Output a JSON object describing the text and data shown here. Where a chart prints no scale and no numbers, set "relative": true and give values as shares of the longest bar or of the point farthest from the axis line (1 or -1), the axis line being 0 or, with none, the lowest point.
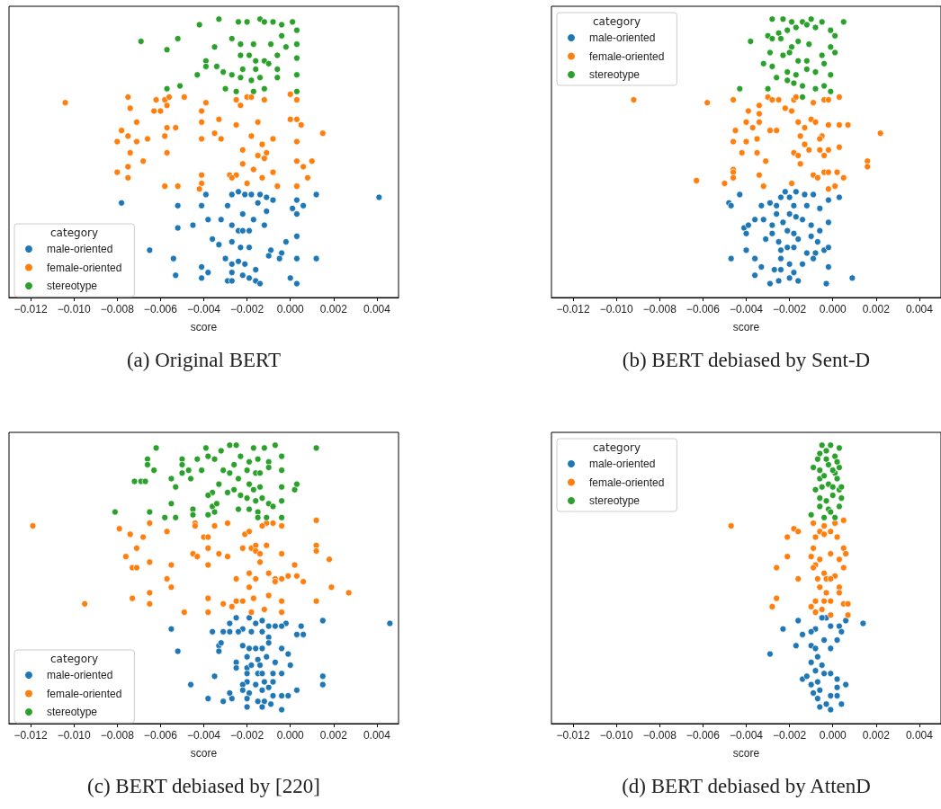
{
  "chart_data": [
    {
      "type": "scatter",
      "relative": true,
      "xlabel": "score",
      "legend_title": "category",
      "legend": "bottom left",
      "marker": "circle",
      "xlim": [
        -0.013,
        0.005
      ],
      "xticks": [
        {
          "value": -0.012,
          "label": "−0.012"
        },
        {
          "value": -0.01,
          "label": "−0.010"
        },
        {
          "value": -0.008,
          "label": "−0.008"
        },
        {
          "value": -0.006,
          "label": "−0.006"
        },
        {
          "value": -0.004,
          "label": "−0.004"
        },
        {
          "value": -0.002,
          "label": "−0.002"
        },
        {
          "value": 0,
          "label": "0.000"
        },
        {
          "value": 0.002,
          "label": "0.002"
        },
        {
          "value": 0.004,
          "label": "0.004"
        }
      ],
      "annotations": [
        "(a) Original BERT"
      ],
      "series": [
        {
          "name": "male-oriented",
          "color": "#1f77b4",
          "x": [
            -0.0078,
            -0.0052,
            -0.0052,
            -0.0045,
            -0.0065,
            -0.0054,
            -0.0053,
            -0.0041,
            -0.0041,
            -0.0038,
            -0.0039,
            -0.0041,
            -0.0038,
            -0.0036,
            -0.0032,
            -0.0033,
            -0.003,
            -0.0029,
            -0.0027,
            -0.0029,
            -0.0024,
            -0.0021,
            -0.0018,
            -0.0014,
            -0.0011,
            -0.0008,
            -0.0015,
            -0.0011,
            -0.0022,
            -0.0017,
            -0.0012,
            -0.0027,
            -0.0024,
            -0.0022,
            -0.0019,
            -0.0027,
            -0.0023,
            -0.0019,
            -0.0009,
            -0.0002,
            -0.0004,
            -0.0005,
            -0.001,
            -0.0027,
            -0.0024,
            -0.0021,
            -0.0016,
            -0.0027,
            -0.0022,
            -0.0019,
            -0.0016,
            -0.0014,
            -0.0027,
            0.0,
            0.0001,
            0.0006,
            0.0012,
            0.0012,
            0.0041,
            0.0003,
            0.0003,
            0.0003,
            0.0003,
            0.0003
          ],
          "values": [
            0.34,
            0.33,
            0.25,
            0.26,
            0.17,
            0.14,
            0.08,
            0.11,
            0.07,
            0.09,
            0.37,
            0.33,
            0.28,
            0.21,
            0.28,
            0.19,
            0.14,
            0.06,
            0.37,
            0.33,
            0.38,
            0.37,
            0.37,
            0.37,
            0.36,
            0.35,
            0.34,
            0.31,
            0.3,
            0.28,
            0.26,
            0.26,
            0.24,
            0.24,
            0.24,
            0.2,
            0.18,
            0.18,
            0.17,
            0.2,
            0.16,
            0.14,
            0.15,
            0.12,
            0.13,
            0.12,
            0.1,
            0.09,
            0.08,
            0.07,
            0.06,
            0.05,
            0.06,
            0.07,
            0.32,
            0.33,
            0.37,
            0.14,
            0.36,
            0.35,
            0.3,
            0.22,
            0.14,
            0.05
          ]
        },
        {
          "name": "female-oriented",
          "color": "#ff7f0e",
          "x": [
            -0.0104,
            -0.0075,
            -0.0074,
            -0.0062,
            -0.0058,
            -0.0056,
            -0.0049,
            -0.0057,
            -0.0063,
            -0.006,
            -0.0071,
            -0.0078,
            -0.008,
            -0.0075,
            -0.0071,
            -0.0066,
            -0.0074,
            -0.0068,
            -0.008,
            -0.0075,
            -0.0075,
            -0.0058,
            -0.0057,
            -0.0053,
            -0.0057,
            -0.0058,
            -0.0052,
            -0.0041,
            -0.0039,
            -0.0041,
            -0.0041,
            -0.0035,
            -0.0033,
            -0.0032,
            -0.0025,
            -0.0023,
            -0.002,
            -0.0018,
            -0.0012,
            -0.0025,
            -0.0015,
            -0.0018,
            -0.0013,
            -0.0022,
            -0.0015,
            -0.0012,
            -0.0011,
            -0.0008,
            -0.0022,
            -0.0017,
            -0.0041,
            -0.0041,
            -0.0042,
            -0.0028,
            -0.0025,
            -0.0027,
            -0.002,
            -0.0013,
            -0.0008,
            -0.0006,
            0.0,
            0.0,
            0.0005,
            0.0015,
            0.0006,
            0.001,
            0.0008,
            0.0003,
            0.0003,
            0.0003,
            0.0003,
            0.0003
          ],
          "values": [
            0.7,
            0.72,
            0.68,
            0.71,
            0.71,
            0.72,
            0.72,
            0.69,
            0.67,
            0.67,
            0.63,
            0.6,
            0.56,
            0.58,
            0.56,
            0.57,
            0.52,
            0.49,
            0.45,
            0.47,
            0.43,
            0.58,
            0.61,
            0.61,
            0.52,
            0.4,
            0.4,
            0.67,
            0.7,
            0.63,
            0.57,
            0.59,
            0.64,
            0.57,
            0.71,
            0.69,
            0.72,
            0.72,
            0.71,
            0.62,
            0.63,
            0.58,
            0.55,
            0.53,
            0.51,
            0.5,
            0.52,
            0.57,
            0.48,
            0.46,
            0.44,
            0.41,
            0.39,
            0.44,
            0.44,
            0.43,
            0.41,
            0.43,
            0.45,
            0.4,
            0.73,
            0.64,
            0.62,
            0.59,
            0.47,
            0.49,
            0.43,
            0.71,
            0.64,
            0.56,
            0.49,
            0.4
          ]
        },
        {
          "name": "stereotype",
          "color": "#2ca02c",
          "x": [
            -0.0033,
            -0.0042,
            -0.0069,
            -0.0052,
            -0.0057,
            -0.0024,
            -0.002,
            -0.0014,
            -0.0012,
            -0.0008,
            -0.0004,
            0.0001,
            0.0003,
            0.0003,
            0.0003,
            0.0003,
            0.0003,
            -0.0035,
            -0.0027,
            -0.0023,
            -0.0017,
            -0.0009,
            -0.0002,
            -0.0004,
            -0.0039,
            -0.0039,
            -0.0043,
            -0.0034,
            -0.0031,
            -0.0027,
            -0.0023,
            -0.0019,
            -0.0016,
            -0.0012,
            -0.001,
            -0.0006,
            -0.0006,
            -0.0006,
            -0.0023,
            -0.0018,
            -0.0014,
            -0.003,
            -0.0025,
            -0.0017,
            -0.0012,
            -0.0057,
            -0.0051,
            -0.0022,
            -0.0016
          ],
          "values": [
            1.0,
            0.98,
            0.92,
            0.93,
            0.89,
            0.99,
            0.99,
            1.0,
            0.99,
            0.99,
            0.98,
            0.99,
            0.96,
            0.91,
            0.86,
            0.8,
            0.74,
            0.9,
            0.93,
            0.91,
            0.91,
            0.91,
            0.9,
            0.94,
            0.85,
            0.83,
            0.8,
            0.83,
            0.81,
            0.8,
            0.87,
            0.87,
            0.85,
            0.85,
            0.84,
            0.87,
            0.82,
            0.79,
            0.79,
            0.78,
            0.79,
            0.75,
            0.74,
            0.74,
            0.75,
            0.75,
            0.76,
            0.82,
            0.82
          ]
        }
      ]
    },
    {
      "type": "scatter",
      "relative": true,
      "xlabel": "score",
      "legend_title": "category",
      "legend": "top left",
      "marker": "circle",
      "xlim": [
        -0.013,
        0.005
      ],
      "xticks": [
        {
          "value": -0.012,
          "label": "−0.012"
        },
        {
          "value": -0.01,
          "label": "−0.010"
        },
        {
          "value": -0.008,
          "label": "−0.008"
        },
        {
          "value": -0.006,
          "label": "−0.006"
        },
        {
          "value": -0.004,
          "label": "−0.004"
        },
        {
          "value": -0.002,
          "label": "−0.002"
        },
        {
          "value": 0,
          "label": "0.000"
        },
        {
          "value": 0.002,
          "label": "0.002"
        },
        {
          "value": 0.004,
          "label": "0.004"
        }
      ],
      "annotations": [
        "(b) BERT debiased by Sent-D"
      ],
      "series": [
        {
          "name": "male-oriented",
          "color": "#1f77b4",
          "x": [
            -0.0043,
            -0.0048,
            -0.0047,
            -0.0033,
            -0.0032,
            -0.0036,
            -0.0041,
            -0.0039,
            -0.004,
            -0.004,
            -0.0047,
            -0.0036,
            -0.0033,
            -0.0036,
            -0.0029,
            -0.0029,
            -0.0026,
            -0.0022,
            -0.0024,
            -0.002,
            -0.0017,
            -0.0013,
            -0.0012,
            -0.0009,
            -0.0006,
            -0.0018,
            -0.002,
            -0.0017,
            -0.0014,
            -0.0026,
            -0.0028,
            -0.0023,
            -0.0021,
            -0.0018,
            -0.0031,
            -0.0028,
            -0.0025,
            -0.0024,
            -0.0021,
            -0.0018,
            -0.0016,
            -0.001,
            -0.0006,
            -0.001,
            -0.0007,
            -0.0012,
            -0.0008,
            -0.0004,
            -0.0009,
            -0.0024,
            -0.002,
            -0.0014,
            -0.0027,
            -0.0024,
            -0.0018,
            -0.0025,
            -0.002,
            -0.0016,
            -0.0003,
            0.0003,
            0.0009,
            -0.0002,
            -0.0002,
            -0.0002,
            -0.0002
          ],
          "values": [
            0.37,
            0.34,
            0.33,
            0.33,
            0.28,
            0.28,
            0.25,
            0.26,
            0.23,
            0.17,
            0.14,
            0.14,
            0.11,
            0.08,
            0.05,
            0.34,
            0.33,
            0.38,
            0.36,
            0.36,
            0.38,
            0.37,
            0.33,
            0.37,
            0.32,
            0.33,
            0.3,
            0.29,
            0.28,
            0.3,
            0.26,
            0.27,
            0.24,
            0.23,
            0.21,
            0.23,
            0.2,
            0.17,
            0.18,
            0.18,
            0.21,
            0.26,
            0.24,
            0.22,
            0.2,
            0.16,
            0.16,
            0.17,
            0.14,
            0.14,
            0.12,
            0.12,
            0.1,
            0.1,
            0.09,
            0.06,
            0.07,
            0.06,
            0.05,
            0.36,
            0.07,
            0.35,
            0.27,
            0.18,
            0.11
          ]
        },
        {
          "name": "female-oriented",
          "color": "#ff7f0e",
          "x": [
            -0.0092,
            -0.0058,
            -0.0046,
            -0.003,
            -0.0028,
            -0.0025,
            -0.0018,
            -0.0017,
            -0.0009,
            -0.0004,
            0.0003,
            -0.0034,
            -0.0039,
            -0.0034,
            -0.0022,
            -0.0019,
            -0.004,
            -0.0034,
            -0.0037,
            -0.0045,
            -0.0046,
            -0.004,
            -0.0035,
            -0.0029,
            -0.0026,
            -0.0016,
            -0.0013,
            -0.001,
            -0.0008,
            -0.0015,
            -0.0013,
            -0.0005,
            -0.0006,
            -0.0011,
            -0.0006,
            0.0003,
            0.0007,
            0.0022,
            0.0003,
            -0.0042,
            -0.0035,
            -0.0031,
            -0.0018,
            -0.0016,
            -0.0015,
            -0.0004,
            -0.0046,
            -0.0046,
            -0.0046,
            -0.0063,
            -0.005,
            -0.0034,
            -0.0032,
            -0.0019,
            -0.0009,
            -0.0007,
            -0.0004,
            0.0002,
            0.0005,
            0.0001,
            0.0016,
            0.0016,
            -0.0002,
            -0.0002,
            -0.0002,
            -0.0002,
            -0.0002
          ],
          "values": [
            0.71,
            0.7,
            0.71,
            0.72,
            0.71,
            0.71,
            0.71,
            0.72,
            0.7,
            0.71,
            0.72,
            0.69,
            0.67,
            0.66,
            0.68,
            0.67,
            0.63,
            0.63,
            0.61,
            0.6,
            0.56,
            0.56,
            0.57,
            0.6,
            0.6,
            0.63,
            0.61,
            0.64,
            0.63,
            0.58,
            0.55,
            0.58,
            0.57,
            0.53,
            0.53,
            0.62,
            0.62,
            0.59,
            0.54,
            0.52,
            0.52,
            0.49,
            0.52,
            0.51,
            0.48,
            0.51,
            0.46,
            0.45,
            0.43,
            0.42,
            0.41,
            0.44,
            0.4,
            0.41,
            0.44,
            0.43,
            0.45,
            0.45,
            0.43,
            0.4,
            0.49,
            0.47,
            0.71,
            0.62,
            0.53,
            0.45,
            0.39
          ]
        },
        {
          "name": "stereotype",
          "color": "#2ca02c",
          "x": [
            -0.0028,
            -0.0023,
            -0.0019,
            -0.0014,
            -0.001,
            -0.0005,
            0.0005,
            -0.0038,
            -0.003,
            -0.0025,
            -0.0021,
            -0.0017,
            -0.0012,
            -0.0008,
            -0.0001,
            0.0001,
            -0.0028,
            -0.0024,
            -0.0019,
            -0.0016,
            -0.0011,
            -0.0001,
            0.0001,
            -0.0029,
            -0.0023,
            -0.002,
            -0.0016,
            -0.0012,
            -0.0005,
            -0.0032,
            -0.0028,
            -0.0021,
            -0.0017,
            -0.0012,
            -0.0008,
            -0.0004,
            -0.0026,
            -0.0021,
            -0.0018,
            -0.0014,
            -0.0008,
            -0.003,
            -0.0043,
            -0.0004,
            -0.0001,
            -0.0001,
            -0.0014
          ],
          "values": [
            1.0,
            1.0,
            0.99,
            0.99,
            1.0,
            0.99,
            0.99,
            0.92,
            0.94,
            0.95,
            0.96,
            0.97,
            0.98,
            0.97,
            0.96,
            0.94,
            0.93,
            0.93,
            0.9,
            0.92,
            0.91,
            0.9,
            0.88,
            0.88,
            0.87,
            0.88,
            0.85,
            0.85,
            0.87,
            0.84,
            0.83,
            0.81,
            0.8,
            0.82,
            0.81,
            0.84,
            0.79,
            0.78,
            0.77,
            0.76,
            0.75,
            0.75,
            0.75,
            0.76,
            0.8,
            0.74,
            0.72
          ]
        }
      ]
    },
    {
      "type": "scatter",
      "relative": true,
      "xlabel": "score",
      "legend_title": "category",
      "legend": "bottom left",
      "marker": "circle",
      "xlim": [
        -0.013,
        0.005
      ],
      "xticks": [
        {
          "value": -0.012,
          "label": "−0.012"
        },
        {
          "value": -0.01,
          "label": "−0.010"
        },
        {
          "value": -0.008,
          "label": "−0.008"
        },
        {
          "value": -0.006,
          "label": "−0.006"
        },
        {
          "value": -0.004,
          "label": "−0.004"
        },
        {
          "value": -0.002,
          "label": "−0.002"
        },
        {
          "value": 0,
          "label": "0.000"
        },
        {
          "value": 0.002,
          "label": "0.002"
        },
        {
          "value": 0.004,
          "label": "0.004"
        }
      ],
      "annotations": [
        "(c) BERT debiased by [220]"
      ],
      "series": [
        {
          "name": "male-oriented",
          "color": "#1f77b4",
          "x": [
            -0.0055,
            -0.0052,
            -0.0035,
            -0.0046,
            -0.0038,
            -0.0031,
            -0.0027,
            -0.0028,
            -0.0036,
            -0.0031,
            -0.0028,
            -0.0028,
            -0.0025,
            -0.0022,
            -0.0024,
            -0.0033,
            -0.0032,
            -0.0033,
            -0.0019,
            -0.0016,
            -0.0013,
            -0.001,
            -0.0007,
            -0.0018,
            -0.0013,
            -0.001,
            -0.001,
            -0.0022,
            -0.0019,
            -0.0016,
            -0.0013,
            -0.002,
            -0.0015,
            -0.0011,
            -0.0025,
            -0.0025,
            -0.002,
            -0.0018,
            -0.0014,
            -0.002,
            -0.0015,
            -0.0013,
            -0.0008,
            -0.0007,
            -0.002,
            -0.0016,
            -0.0012,
            -0.0008,
            -0.0022,
            -0.0022,
            -0.0019,
            -0.0013,
            -0.001,
            -0.002,
            -0.0015,
            -0.0012,
            -0.002,
            -0.0013,
            -0.0008,
            -0.0009,
            -0.0001,
            -0.0001,
            0.0,
            -0.0002,
            0.0003,
            0.0005,
            0.0006,
            0.0003,
            0.0015,
            0.0015,
            0.0015,
            0.0046,
            -0.0004,
            -0.0004,
            -0.0004,
            -0.0004,
            -0.0004
          ],
          "values": [
            0.34,
            0.26,
            0.17,
            0.14,
            0.09,
            0.08,
            0.09,
            0.11,
            0.33,
            0.33,
            0.33,
            0.36,
            0.38,
            0.34,
            0.33,
            0.28,
            0.29,
            0.26,
            0.38,
            0.36,
            0.37,
            0.35,
            0.35,
            0.33,
            0.33,
            0.31,
            0.29,
            0.28,
            0.27,
            0.27,
            0.27,
            0.24,
            0.23,
            0.24,
            0.22,
            0.2,
            0.2,
            0.21,
            0.21,
            0.18,
            0.18,
            0.18,
            0.18,
            0.22,
            0.15,
            0.14,
            0.15,
            0.15,
            0.14,
            0.12,
            0.11,
            0.12,
            0.13,
            0.09,
            0.08,
            0.08,
            0.06,
            0.06,
            0.1,
            0.07,
            0.1,
            0.25,
            0.21,
            0.36,
            0.32,
            0.35,
            0.32,
            0.12,
            0.37,
            0.17,
            0.14,
            0.36,
            0.35,
            0.27,
            0.18,
            0.1,
            0.05
          ]
        },
        {
          "name": "female-oriented",
          "color": "#ff7f0e",
          "x": [
            -0.0119,
            -0.0095,
            -0.0079,
            -0.0074,
            -0.0068,
            -0.0071,
            -0.0076,
            -0.0073,
            -0.0071,
            -0.0065,
            -0.0057,
            -0.0065,
            -0.0055,
            -0.0057,
            -0.0055,
            -0.0065,
            -0.0073,
            -0.0065,
            -0.0049,
            -0.0044,
            -0.0044,
            -0.0035,
            -0.0029,
            -0.004,
            -0.0038,
            -0.0038,
            -0.0045,
            -0.0043,
            -0.0033,
            -0.0029,
            -0.0038,
            -0.0021,
            -0.0019,
            -0.0022,
            -0.0018,
            -0.0016,
            -0.0011,
            -0.0016,
            -0.0014,
            -0.0014,
            -0.001,
            -0.0007,
            -0.0007,
            -0.0019,
            -0.0025,
            -0.0016,
            -0.0019,
            -0.001,
            -0.0038,
            -0.0031,
            -0.0027,
            -0.0038,
            -0.0025,
            -0.0022,
            -0.0017,
            -0.0018,
            -0.0012,
            -0.0011,
            -0.0008,
            -0.0013,
            0.0002,
            -0.0001,
            0.0003,
            0.0006,
            0.0012,
            0.0012,
            0.0012,
            0.0018,
            0.0019,
            0.0027,
            0.0012,
            -0.0004,
            -0.0004,
            -0.0004,
            -0.0004,
            -0.0004
          ],
          "values": [
            0.71,
            0.43,
            0.7,
            0.68,
            0.67,
            0.63,
            0.6,
            0.56,
            0.56,
            0.72,
            0.69,
            0.58,
            0.57,
            0.52,
            0.49,
            0.47,
            0.45,
            0.43,
            0.4,
            0.72,
            0.71,
            0.71,
            0.72,
            0.67,
            0.67,
            0.63,
            0.61,
            0.6,
            0.61,
            0.6,
            0.57,
            0.68,
            0.69,
            0.63,
            0.63,
            0.64,
            0.64,
            0.62,
            0.61,
            0.58,
            0.54,
            0.52,
            0.51,
            0.54,
            0.52,
            0.52,
            0.49,
            0.46,
            0.45,
            0.43,
            0.42,
            0.4,
            0.44,
            0.44,
            0.45,
            0.4,
            0.41,
            0.72,
            0.72,
            0.71,
            0.57,
            0.53,
            0.53,
            0.51,
            0.73,
            0.64,
            0.62,
            0.59,
            0.49,
            0.47,
            0.44,
            0.71,
            0.61,
            0.52,
            0.44,
            0.4
          ]
        },
        {
          "name": "stereotype",
          "color": "#2ca02c",
          "x": [
            0.0012,
            -0.0062,
            -0.0039,
            -0.0028,
            -0.0025,
            -0.0017,
            -0.0012,
            -0.0007,
            -0.0066,
            -0.0066,
            -0.0063,
            -0.005,
            -0.005,
            -0.0047,
            -0.005,
            -0.0043,
            -0.0038,
            -0.0032,
            -0.0035,
            -0.0031,
            -0.0026,
            -0.0023,
            -0.0019,
            -0.0015,
            -0.001,
            -0.001,
            -0.0041,
            -0.0028,
            -0.002,
            -0.0016,
            -0.0014,
            -0.0072,
            -0.0069,
            -0.0067,
            -0.0055,
            -0.0053,
            -0.0046,
            -0.0033,
            -0.0024,
            -0.0019,
            -0.0014,
            -0.0026,
            -0.0023,
            -0.0017,
            -0.0036,
            -0.0038,
            -0.0029,
            -0.002,
            -0.0016,
            -0.0013,
            -0.001,
            -0.0036,
            -0.0034,
            -0.0024,
            -0.0019,
            -0.0015,
            -0.0008,
            -0.0055,
            -0.0065,
            -0.0081,
            -0.0058,
            -0.0053,
            -0.0045,
            -0.0045,
            -0.0038,
            -0.0035,
            -0.0015,
            -0.0011,
            0.0002,
            0.0003,
            -0.0004,
            -0.0004,
            -0.0004,
            -0.0004,
            -0.0004
          ],
          "values": [
            0.99,
            0.99,
            0.99,
            1.0,
            1.0,
            0.99,
            0.99,
            1.0,
            0.95,
            0.93,
            0.91,
            0.95,
            0.93,
            0.91,
            0.9,
            0.95,
            0.96,
            0.98,
            0.95,
            0.91,
            0.93,
            0.96,
            0.94,
            0.95,
            0.94,
            0.92,
            0.91,
            0.9,
            0.91,
            0.9,
            0.9,
            0.87,
            0.87,
            0.87,
            0.88,
            0.85,
            0.88,
            0.86,
            0.88,
            0.86,
            0.85,
            0.84,
            0.82,
            0.84,
            0.83,
            0.82,
            0.83,
            0.81,
            0.8,
            0.81,
            0.79,
            0.78,
            0.79,
            0.77,
            0.77,
            0.76,
            0.78,
            0.79,
            0.76,
            0.76,
            0.74,
            0.74,
            0.77,
            0.75,
            0.75,
            0.76,
            0.74,
            0.74,
            0.84,
            0.86,
            0.96,
            0.91,
            0.85,
            0.8,
            0.74
          ]
        }
      ]
    },
    {
      "type": "scatter",
      "relative": true,
      "xlabel": "score",
      "legend_title": "category",
      "legend": "top left",
      "marker": "circle",
      "xlim": [
        -0.013,
        0.005
      ],
      "xticks": [
        {
          "value": -0.012,
          "label": "−0.012"
        },
        {
          "value": -0.01,
          "label": "−0.010"
        },
        {
          "value": -0.008,
          "label": "−0.008"
        },
        {
          "value": -0.006,
          "label": "−0.006"
        },
        {
          "value": -0.004,
          "label": "−0.004"
        },
        {
          "value": -0.002,
          "label": "−0.002"
        },
        {
          "value": 0,
          "label": "0.000"
        },
        {
          "value": 0.002,
          "label": "0.002"
        },
        {
          "value": 0.004,
          "label": "0.004"
        }
      ],
      "annotations": [
        "(d) BERT debiased by AttenD"
      ],
      "series": [
        {
          "name": "male-oriented",
          "color": "#1f77b4",
          "x": [
            -0.0016,
            -0.0023,
            -0.0014,
            -0.0017,
            -0.0029,
            -0.0014,
            -0.0012,
            -0.0003,
            -0.0005,
            -0.0008,
            -0.001,
            0.0006,
            0.0014,
            0.0003,
            0.0004,
            0.0002,
            -0.001,
            -0.0008,
            -0.0004,
            -0.001,
            -0.0007,
            -0.0005,
            -0.0008,
            -0.0004,
            -0.001,
            -0.0007,
            0.0002,
            0.0006,
            0.0002,
            -0.0009,
            -0.0006,
            0.0002,
            -0.0007,
            0.0004,
            -0.0006,
            -0.0003,
            -0.0001,
            -0.0001,
            -0.0001,
            -0.0001,
            -0.0001
          ],
          "values": [
            0.37,
            0.34,
            0.32,
            0.28,
            0.25,
            0.16,
            0.17,
            0.38,
            0.38,
            0.34,
            0.33,
            0.37,
            0.36,
            0.35,
            0.33,
            0.3,
            0.28,
            0.27,
            0.3,
            0.22,
            0.24,
            0.21,
            0.19,
            0.18,
            0.14,
            0.15,
            0.16,
            0.14,
            0.13,
            0.11,
            0.12,
            0.1,
            0.09,
            0.07,
            0.06,
            0.07,
            0.35,
            0.27,
            0.18,
            0.1,
            0.05
          ]
        },
        {
          "name": "female-oriented",
          "color": "#ff7f0e",
          "x": [
            -0.0047,
            -0.0018,
            -0.0016,
            -0.0021,
            -0.0021,
            -0.0026,
            -0.0016,
            -0.0026,
            -0.0028,
            -0.0009,
            -0.0004,
            0.0005,
            0.0001,
            -0.0006,
            -0.0008,
            -0.0004,
            0.0002,
            -0.0009,
            0.0005,
            0.0006,
            -0.001,
            -0.0006,
            0.0003,
            -0.0008,
            -0.0009,
            0.0005,
            -0.0004,
            -0.0007,
            -0.0003,
            0.0001,
            -0.0006,
            0.0003,
            0.0003,
            -0.0003,
            -0.0008,
            -0.001,
            -0.0004,
            0.0005,
            0.0007,
            -0.0008,
            -0.0005,
            0.0007,
            -0.0001,
            -0.0001,
            -0.0001,
            -0.0001,
            -0.0001
          ],
          "values": [
            0.71,
            0.7,
            0.69,
            0.67,
            0.6,
            0.56,
            0.52,
            0.45,
            0.42,
            0.72,
            0.71,
            0.73,
            0.72,
            0.69,
            0.67,
            0.68,
            0.67,
            0.63,
            0.63,
            0.61,
            0.6,
            0.59,
            0.59,
            0.57,
            0.56,
            0.56,
            0.54,
            0.52,
            0.52,
            0.53,
            0.49,
            0.49,
            0.47,
            0.47,
            0.44,
            0.42,
            0.44,
            0.43,
            0.43,
            0.4,
            0.41,
            0.39,
            0.69,
            0.61,
            0.52,
            0.44,
            0.39
          ]
        },
        {
          "name": "stereotype",
          "color": "#2ca02c",
          "x": [
            -0.0005,
            -0.0001,
            0.0003,
            -0.0006,
            0.0001,
            -0.0009,
            0.0003,
            -0.0006,
            0.0001,
            -0.0006,
            0.0002,
            -0.0005,
            0.0003,
            -0.0006,
            0.0004,
            0.0,
            -0.0006,
            0.0003,
            -0.001,
            -0.0004,
            0.0001,
            -0.0002,
            -0.0002,
            -0.0002,
            -0.0003,
            -0.0003,
            0.0,
            -0.0004,
            0.0,
            -0.0003,
            -0.0001,
            0.0002,
            -0.0007,
            0.0004,
            -0.0008
          ],
          "values": [
            1.0,
            1.0,
            0.99,
            0.97,
            0.96,
            0.92,
            0.92,
            0.91,
            0.9,
            0.88,
            0.88,
            0.85,
            0.84,
            0.81,
            0.81,
            0.82,
            0.78,
            0.78,
            0.75,
            0.74,
            0.74,
            0.93,
            0.86,
            0.77,
            0.98,
            0.95,
            0.91,
            0.89,
            0.85,
            0.8,
            0.76,
            0.94,
            0.95,
            0.85,
            0.84
          ]
        }
      ]
    }
  ]
}
